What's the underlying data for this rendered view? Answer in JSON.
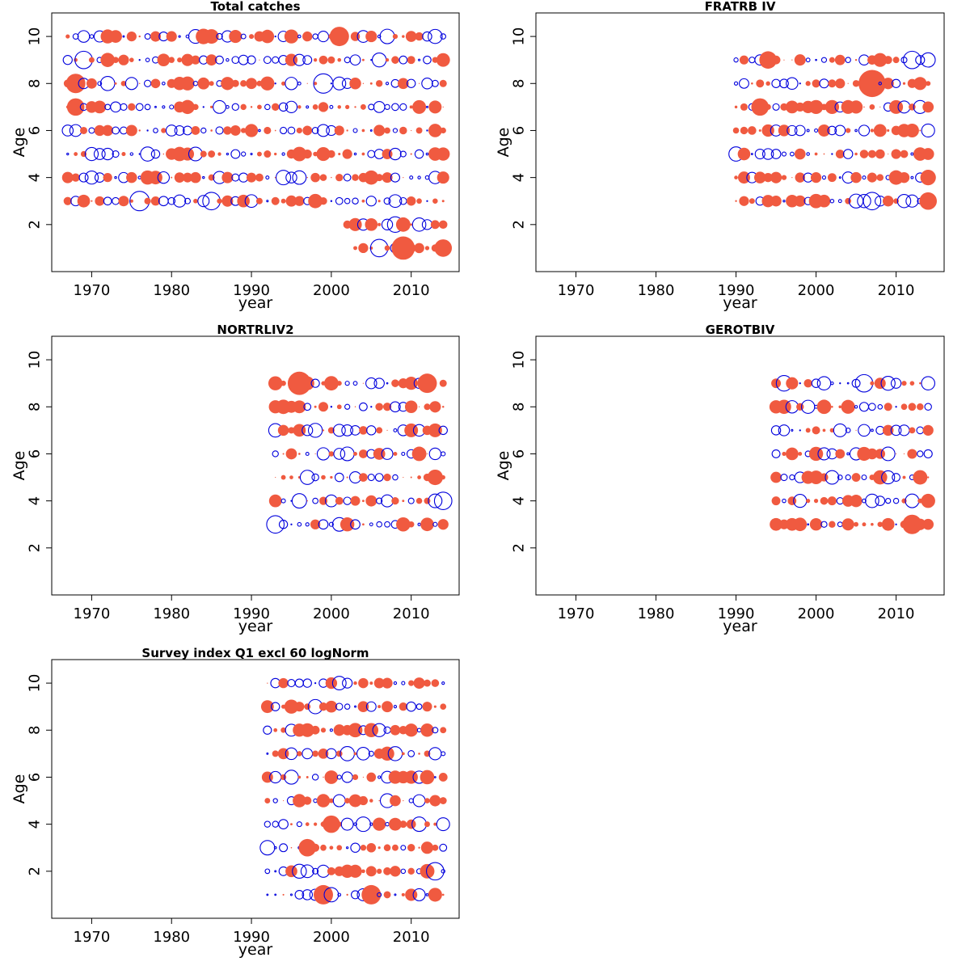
{
  "figure": {
    "colors": {
      "positive": "#f05a40",
      "negative": "#0000dd",
      "axis": "#000000"
    }
  },
  "chart_data": [
    {
      "type": "scatter",
      "subtype": "bubble",
      "title": "Total catches",
      "xlabel": "year",
      "ylabel": "Age",
      "xlim": [
        1965,
        2016
      ],
      "ylim": [
        0,
        11
      ],
      "xticks": [
        1970,
        1980,
        1990,
        2000,
        2010
      ],
      "yticks": [
        2,
        4,
        6,
        8,
        10
      ],
      "years": [
        1967,
        2014
      ],
      "ages": [
        3,
        4,
        5,
        6,
        7,
        8,
        9,
        10
      ],
      "extra_rows": [
        {
          "age": 2,
          "years": [
            2002,
            2014
          ]
        },
        {
          "age": 1,
          "years": [
            2003,
            2014
          ]
        }
      ],
      "highlights": [
        {
          "year": 1976,
          "age": 3,
          "r": 1.0,
          "sign": -1
        },
        {
          "year": 2001,
          "age": 10,
          "r": 1.0,
          "sign": 1
        },
        {
          "year": 2009,
          "age": 1,
          "r": 1.2,
          "sign": 1
        },
        {
          "year": 1999,
          "age": 8,
          "r": 1.0,
          "sign": -1
        },
        {
          "year": 1968,
          "age": 8,
          "r": 1.0,
          "sign": 1
        },
        {
          "year": 1968,
          "age": 7,
          "r": 0.9,
          "sign": 1
        },
        {
          "year": 1969,
          "age": 9,
          "r": 0.9,
          "sign": -1
        },
        {
          "year": 1984,
          "age": 10,
          "r": 0.8,
          "sign": 1
        },
        {
          "year": 1985,
          "age": 3,
          "r": 0.9,
          "sign": -1
        },
        {
          "year": 2014,
          "age": 1,
          "r": 0.9,
          "sign": 1
        },
        {
          "year": 2006,
          "age": 1,
          "r": 0.9,
          "sign": -1
        },
        {
          "year": 2008,
          "age": 2,
          "r": 0.8,
          "sign": -1
        }
      ],
      "seed": 11
    },
    {
      "type": "scatter",
      "subtype": "bubble",
      "title": "FRATRB IV",
      "xlabel": "year",
      "ylabel": "Age",
      "xlim": [
        1965,
        2016
      ],
      "ylim": [
        0,
        11
      ],
      "xticks": [
        1970,
        1980,
        1990,
        2000,
        2010
      ],
      "yticks": [
        2,
        4,
        6,
        8,
        10
      ],
      "years": [
        1990,
        2014
      ],
      "ages": [
        3,
        4,
        5,
        6,
        7,
        8,
        9
      ],
      "extra_rows": [],
      "highlights": [
        {
          "year": 2007,
          "age": 8,
          "r": 1.4,
          "sign": 1
        },
        {
          "year": 1994,
          "age": 9,
          "r": 0.9,
          "sign": 1
        },
        {
          "year": 1993,
          "age": 7,
          "r": 0.9,
          "sign": 1
        },
        {
          "year": 2014,
          "age": 3,
          "r": 0.9,
          "sign": 1
        },
        {
          "year": 2014,
          "age": 4,
          "r": 0.8,
          "sign": 1
        },
        {
          "year": 2012,
          "age": 9,
          "r": 0.9,
          "sign": -1
        },
        {
          "year": 2007,
          "age": 3,
          "r": 0.9,
          "sign": -1
        }
      ],
      "seed": 23
    },
    {
      "type": "scatter",
      "subtype": "bubble",
      "title": "NORTRLIV2",
      "xlabel": "year",
      "ylabel": "Age",
      "xlim": [
        1965,
        2016
      ],
      "ylim": [
        0,
        11
      ],
      "xticks": [
        1970,
        1980,
        1990,
        2000,
        2010
      ],
      "yticks": [
        2,
        4,
        6,
        8,
        10
      ],
      "years": [
        1993,
        2014
      ],
      "ages": [
        3,
        4,
        5,
        6,
        7,
        8,
        9
      ],
      "extra_rows": [],
      "highlights": [
        {
          "year": 1996,
          "age": 9,
          "r": 1.2,
          "sign": 1
        },
        {
          "year": 1993,
          "age": 3,
          "r": 0.9,
          "sign": -1
        },
        {
          "year": 2012,
          "age": 9,
          "r": 1.0,
          "sign": 1
        },
        {
          "year": 2013,
          "age": 5,
          "r": 0.8,
          "sign": 1
        },
        {
          "year": 2014,
          "age": 4,
          "r": 0.9,
          "sign": -1
        }
      ],
      "seed": 37
    },
    {
      "type": "scatter",
      "subtype": "bubble",
      "title": "GEROTBIV",
      "xlabel": "year",
      "ylabel": "Age",
      "xlim": [
        1965,
        2016
      ],
      "ylim": [
        0,
        11
      ],
      "xticks": [
        1970,
        1980,
        1990,
        2000,
        2010
      ],
      "yticks": [
        2,
        4,
        6,
        8,
        10
      ],
      "years": [
        1995,
        2014
      ],
      "ages": [
        3,
        4,
        5,
        6,
        7,
        8,
        9
      ],
      "extra_rows": [],
      "highlights": [
        {
          "year": 2012,
          "age": 3,
          "r": 1.0,
          "sign": 1
        },
        {
          "year": 2006,
          "age": 9,
          "r": 0.9,
          "sign": -1
        },
        {
          "year": 1996,
          "age": 9,
          "r": 0.8,
          "sign": -1
        }
      ],
      "seed": 41
    },
    {
      "type": "scatter",
      "subtype": "bubble",
      "title": "Survey index Q1 excl 60 logNorm",
      "xlabel": "year",
      "ylabel": "Age",
      "xlim": [
        1965,
        2016
      ],
      "ylim": [
        0,
        11
      ],
      "xticks": [
        1970,
        1980,
        1990,
        2000,
        2010
      ],
      "yticks": [
        2,
        4,
        6,
        8,
        10
      ],
      "years": [
        1992,
        2014
      ],
      "ages": [
        1,
        2,
        3,
        4,
        5,
        6,
        7,
        8,
        9,
        10
      ],
      "extra_rows": [],
      "highlights": [
        {
          "year": 2005,
          "age": 1,
          "r": 1.0,
          "sign": 1
        },
        {
          "year": 1999,
          "age": 1,
          "r": 1.0,
          "sign": 1
        },
        {
          "year": 2013,
          "age": 2,
          "r": 0.9,
          "sign": -1
        },
        {
          "year": 1997,
          "age": 3,
          "r": 0.9,
          "sign": 1
        },
        {
          "year": 2000,
          "age": 4,
          "r": 0.9,
          "sign": 1
        }
      ],
      "seed": 53
    }
  ]
}
